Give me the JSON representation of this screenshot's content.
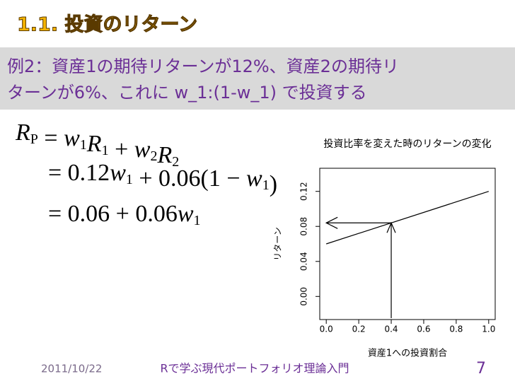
{
  "slide_title": "1.1. 投資のリターン",
  "example_lines": [
    "例2：資産1の期待リターンが12%、資産2の期待リ",
    "ターンが6%、これに w_1:(1-w_1) で投資する"
  ],
  "equations": [
    [
      {
        "v": "R",
        "sub": "P"
      },
      " = ",
      {
        "v": "w",
        "sub": "1"
      },
      {
        "v": "R",
        "sub": "1"
      },
      " + ",
      {
        "v": "w",
        "sub": "2"
      },
      {
        "v": "R",
        "sub": "2"
      }
    ],
    [
      "= 0.12",
      {
        "v": "w",
        "sub": "1"
      },
      " + 0.06(1 − ",
      {
        "v": "w",
        "sub": "1"
      },
      ")"
    ],
    [
      "= 0.06 + 0.06",
      {
        "v": "w",
        "sub": "1"
      }
    ]
  ],
  "chart_data": {
    "type": "line",
    "title": "投資比率を変えた時のリターンの変化",
    "x_label": "資産1への投資割合",
    "y_label": "リターン",
    "x": [
      0,
      1
    ],
    "series": [
      {
        "color": "#000000",
        "values": [
          0.06,
          0.12
        ]
      }
    ],
    "xlim": [
      -0.04,
      1.04
    ],
    "ylim": [
      -0.0264,
      0.1464
    ],
    "xticks": [
      {
        "value": 0,
        "label": "0.0"
      },
      0.2,
      0.4,
      0.6,
      0.8,
      {
        "value": 1,
        "label": "1.0"
      }
    ],
    "yticks": [
      {
        "value": 0,
        "label": "0.00"
      },
      {
        "value": 0.04,
        "label": "0.04"
      },
      {
        "value": 0.08,
        "label": "0.08"
      },
      {
        "value": 0.12,
        "label": "0.12"
      }
    ],
    "grid": false,
    "arrow_point": {
      "x": 0.4,
      "y": 0.084
    }
  },
  "footer": {
    "date": "2011/10/22",
    "course": "Rで学ぶ現代ポートフォリオ理論入門",
    "page": "7"
  }
}
